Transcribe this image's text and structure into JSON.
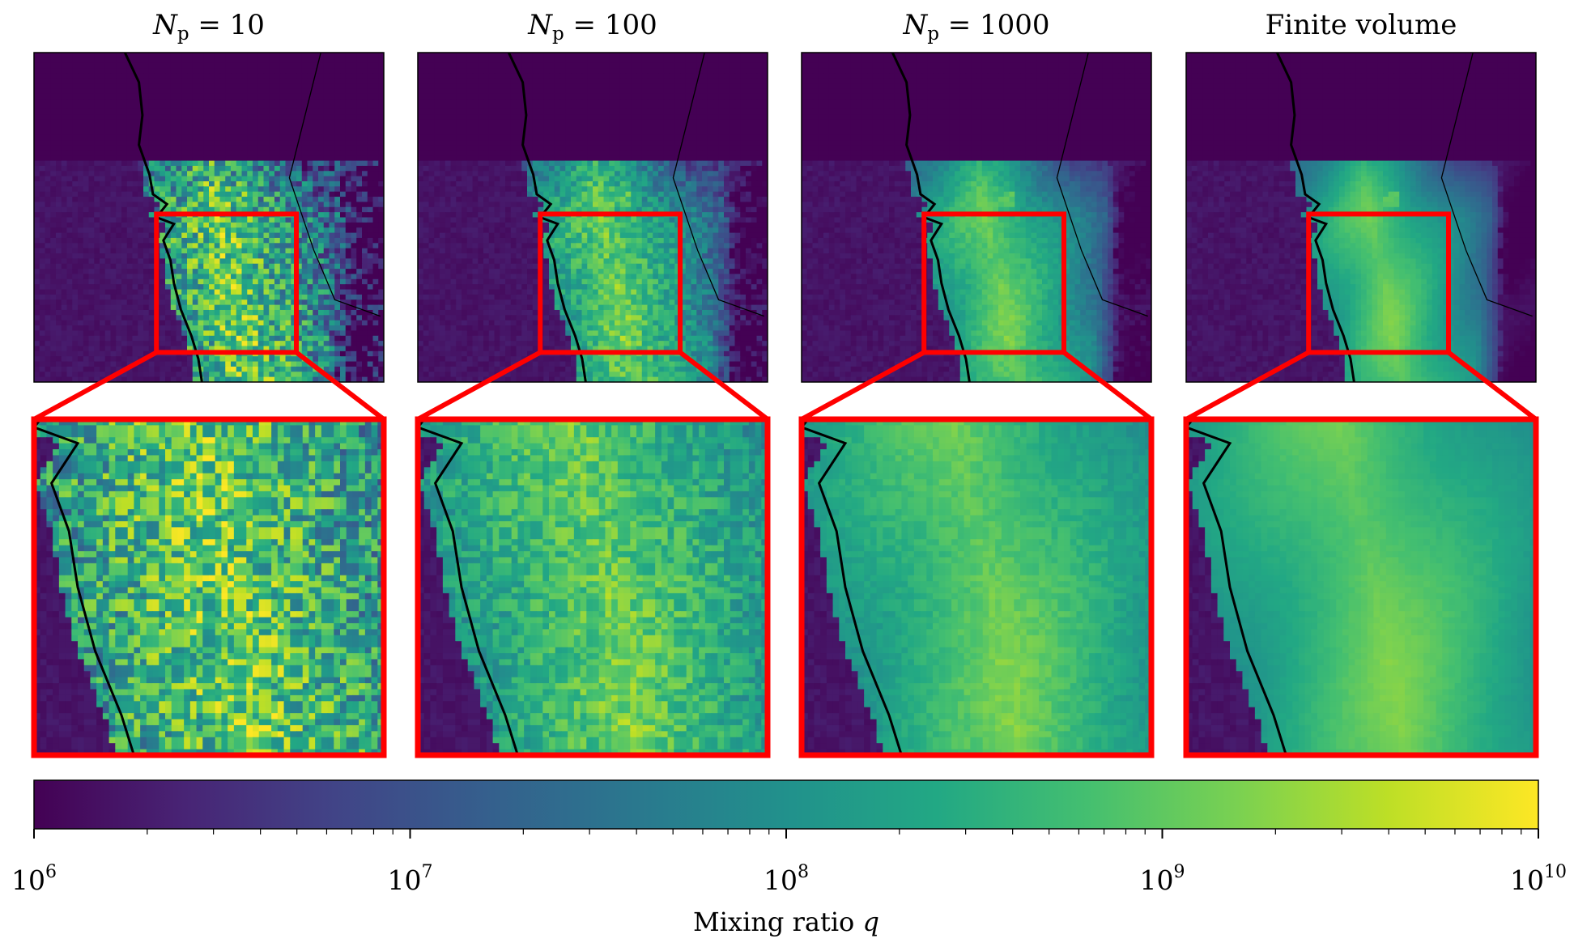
{
  "chart_data": {
    "type": "heatmap",
    "panels": [
      {
        "title_var": "N",
        "title_sub": "p",
        "title_eq": " = 10",
        "noise": 1.0,
        "smooth": 0.0
      },
      {
        "title_var": "N",
        "title_sub": "p",
        "title_eq": " = 100",
        "noise": 0.45,
        "smooth": 0.55
      },
      {
        "title_var": "N",
        "title_sub": "p",
        "title_eq": " = 1000",
        "noise": 0.15,
        "smooth": 0.85
      },
      {
        "title_text": "Finite volume",
        "noise": 0.05,
        "smooth": 1.0
      }
    ],
    "colorbar": {
      "scale": "log",
      "range": [
        1000000,
        10000000000
      ],
      "tick_bases": [
        "10",
        "10",
        "10",
        "10",
        "10"
      ],
      "tick_exponents": [
        "6",
        "7",
        "8",
        "9",
        "10"
      ],
      "label_text": "Mixing ratio ",
      "label_var": "q",
      "colormap": "viridis"
    },
    "inset_box_color": "#ff0000",
    "coastline_color": "#000000"
  }
}
